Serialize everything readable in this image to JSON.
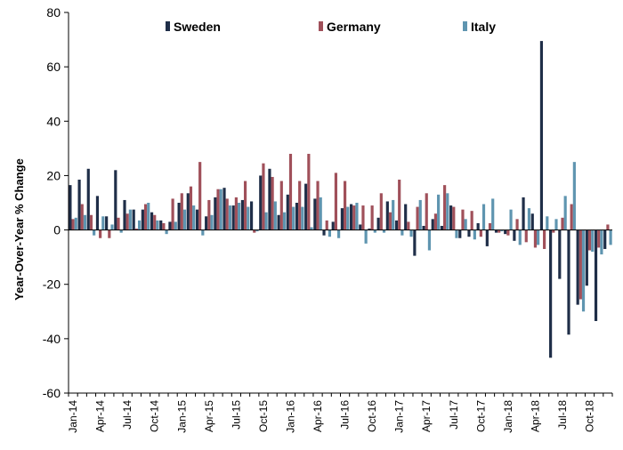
{
  "chart_data": {
    "type": "bar",
    "title": "",
    "xlabel": "",
    "ylabel": "Year-Over-Year % Change",
    "ylim": [
      -60,
      80
    ],
    "yticks": [
      -60,
      -40,
      -20,
      0,
      20,
      40,
      60,
      80
    ],
    "xtick_labels": [
      "Jan-14",
      "Apr-14",
      "Jul-14",
      "Oct-14",
      "Jan-15",
      "Apr-15",
      "Jul-15",
      "Oct-15",
      "Jan-16",
      "Apr-16",
      "Jul-16",
      "Oct-16",
      "Jan-17",
      "Apr-17",
      "Jul-17",
      "Oct-17",
      "Jan-18",
      "Apr-18",
      "Jul-18",
      "Oct-18"
    ],
    "xtick_every": 3,
    "legend_position": "top",
    "categories": [
      "Jan-14",
      "Feb-14",
      "Mar-14",
      "Apr-14",
      "May-14",
      "Jun-14",
      "Jul-14",
      "Aug-14",
      "Sep-14",
      "Oct-14",
      "Nov-14",
      "Dec-14",
      "Jan-15",
      "Feb-15",
      "Mar-15",
      "Apr-15",
      "May-15",
      "Jun-15",
      "Jul-15",
      "Aug-15",
      "Sep-15",
      "Oct-15",
      "Nov-15",
      "Dec-15",
      "Jan-16",
      "Feb-16",
      "Mar-16",
      "Apr-16",
      "May-16",
      "Jun-16",
      "Jul-16",
      "Aug-16",
      "Sep-16",
      "Oct-16",
      "Nov-16",
      "Dec-16",
      "Jan-17",
      "Feb-17",
      "Mar-17",
      "Apr-17",
      "May-17",
      "Jun-17",
      "Jul-17",
      "Aug-17",
      "Sep-17",
      "Oct-17",
      "Nov-17",
      "Dec-17",
      "Jan-18",
      "Feb-18",
      "Mar-18",
      "Apr-18",
      "May-18",
      "Jun-18",
      "Jul-18",
      "Aug-18",
      "Sep-18",
      "Oct-18",
      "Nov-18",
      "Dec-18"
    ],
    "series": [
      {
        "name": "Sweden",
        "color": "#1f2e48",
        "values": [
          16.5,
          18.5,
          22.5,
          12.5,
          5,
          22,
          11,
          7.5,
          7.5,
          6.5,
          3.5,
          3,
          10,
          13.5,
          7.5,
          5,
          12,
          15.5,
          9,
          11,
          10.5,
          20,
          22.5,
          5.5,
          13,
          10,
          17,
          11.5,
          -2,
          3,
          8,
          9.5,
          2,
          0.5,
          4.5,
          10.5,
          3.5,
          9.5,
          -9.5,
          1.5,
          4,
          1.5,
          9,
          -3,
          -2.5,
          2.5,
          -6,
          -1,
          -1.5,
          -4,
          12,
          6,
          69.5,
          -47,
          -18,
          -38.5,
          -27.5,
          -20.5,
          -33.5,
          -7
        ]
      },
      {
        "name": "Germany",
        "color": "#a0505a",
        "values": [
          4,
          9.5,
          5.5,
          -3,
          -3,
          4.5,
          6,
          0.5,
          9.5,
          5.5,
          2.5,
          11.5,
          13.5,
          16,
          25,
          11,
          15,
          11.5,
          12,
          18,
          -1,
          24.5,
          19.5,
          18,
          28,
          18,
          28,
          18,
          3.5,
          21,
          18,
          9,
          9,
          9,
          13.5,
          6.5,
          18.5,
          3,
          8.5,
          13.5,
          6,
          16.5,
          8.5,
          7.5,
          7,
          -2.5,
          2.5,
          -1,
          -2,
          4,
          -4.5,
          -6.5,
          -7,
          -1,
          4.5,
          9.5,
          -25.5,
          -7.5,
          -6.5,
          2
        ]
      },
      {
        "name": "Italy",
        "color": "#5f95b0",
        "values": [
          4.5,
          5.5,
          -2,
          5,
          2,
          -1,
          7.5,
          3.5,
          10,
          3.5,
          -1.5,
          3,
          7.5,
          9,
          -2,
          5.5,
          15,
          9,
          10,
          8.5,
          -0.5,
          6.5,
          10.5,
          6.5,
          8.5,
          8.5,
          1,
          12,
          -2.5,
          -3,
          8.5,
          10,
          -5,
          -1,
          -1,
          11,
          -2,
          -2.5,
          11,
          -7.5,
          13,
          13.5,
          -3,
          4,
          -3.5,
          9.5,
          11.5,
          -0.5,
          7.5,
          -5.5,
          8,
          -5.5,
          5,
          4,
          12.5,
          25,
          -30,
          -8,
          -9,
          -5.5
        ]
      }
    ]
  }
}
